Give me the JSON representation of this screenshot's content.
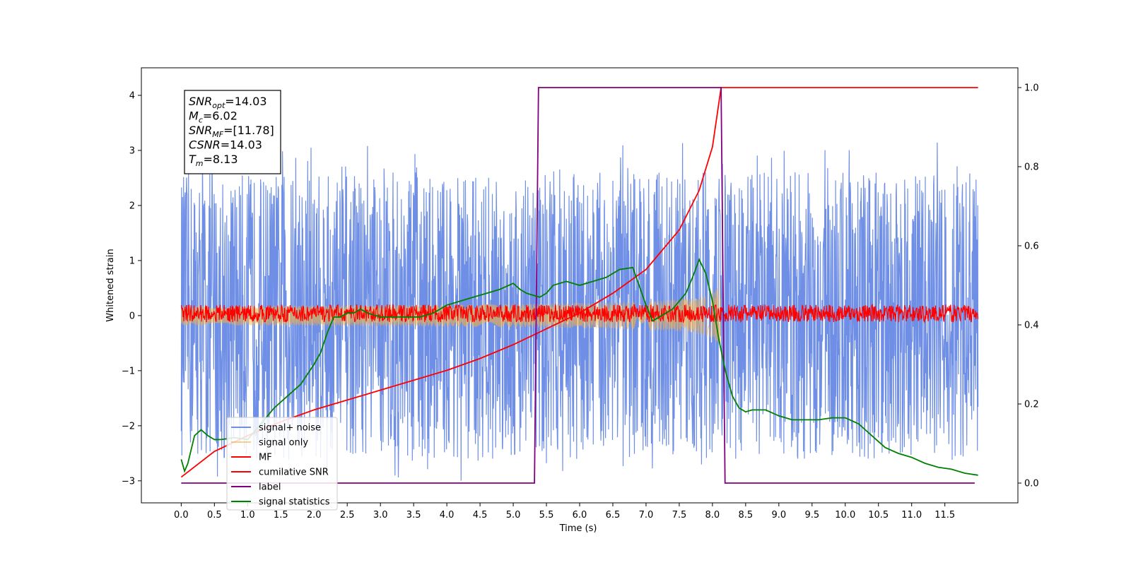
{
  "chart_data": {
    "type": "line",
    "xlabel": "Time (s)",
    "ylabel": "Whitened strain",
    "xlim": [
      -0.6,
      12.6
    ],
    "ylim": [
      -3.4,
      4.5
    ],
    "ylim_right": [
      -0.05,
      1.05
    ],
    "x_ticks": [
      "0.0",
      "0.5",
      "1.0",
      "1.5",
      "2.0",
      "2.5",
      "3.0",
      "3.5",
      "4.0",
      "4.5",
      "5.0",
      "5.5",
      "6.0",
      "6.5",
      "7.0",
      "7.5",
      "8.0",
      "8.5",
      "9.0",
      "9.5",
      "10.0",
      "10.5",
      "11.0",
      "11.5"
    ],
    "y_ticks_left": [
      "-3",
      "-2",
      "-1",
      "0",
      "1",
      "2",
      "3",
      "4"
    ],
    "y_ticks_right": [
      "0.0",
      "0.2",
      "0.4",
      "0.6",
      "0.8",
      "1.0"
    ],
    "annotation": [
      {
        "sym": "SNR",
        "sub": "opt",
        "rest": "=14.03"
      },
      {
        "sym": "M",
        "sub": "c",
        "rest": "=6.02"
      },
      {
        "sym": "SNR",
        "sub": "MF",
        "rest": "=[11.78]"
      },
      {
        "sym": "CSNR",
        "sub": "",
        "rest": "=14.03"
      },
      {
        "sym": "T",
        "sub": "m",
        "rest": "=8.13"
      }
    ],
    "legend_position": "lower-left",
    "series": [
      {
        "name": "signal+ noise",
        "color": "#6f8fe6",
        "axis": "left",
        "kind": "noise",
        "x_range": [
          0.0,
          12.0
        ],
        "envelope": [
          -2.6,
          2.6
        ],
        "peaks": [
          -3.0,
          3.2
        ]
      },
      {
        "name": "signal only",
        "color": "#f5b041",
        "axis": "left",
        "kind": "chirp",
        "x_range": [
          0.0,
          8.13
        ],
        "amplitude_end": 0.95
      },
      {
        "name": "MF",
        "color": "#ff0000",
        "axis": "left",
        "kind": "noise",
        "x_range": [
          0.0,
          12.0
        ],
        "envelope": [
          -0.12,
          0.2
        ]
      },
      {
        "name": "cumilative SNR",
        "color": "#ff0000",
        "axis": "right",
        "kind": "line",
        "x": [
          0.0,
          0.5,
          1.0,
          1.5,
          2.0,
          2.5,
          3.0,
          3.5,
          4.0,
          4.5,
          5.0,
          5.5,
          6.0,
          6.5,
          7.0,
          7.5,
          7.8,
          8.0,
          8.13,
          8.13,
          12.0
        ],
        "y": [
          0.015,
          0.08,
          0.12,
          0.155,
          0.185,
          0.21,
          0.235,
          0.26,
          0.285,
          0.315,
          0.35,
          0.39,
          0.43,
          0.48,
          0.54,
          0.64,
          0.74,
          0.85,
          1.0,
          1.0,
          1.0
        ]
      },
      {
        "name": "label",
        "color": "#800080",
        "axis": "right",
        "kind": "line",
        "x": [
          0.0,
          5.32,
          5.38,
          8.13,
          8.19,
          11.95
        ],
        "y": [
          0.0,
          0.0,
          1.0,
          1.0,
          0.0,
          0.0
        ]
      },
      {
        "name": "signal statistics",
        "color": "#008000",
        "axis": "right",
        "kind": "line",
        "x": [
          0.0,
          0.05,
          0.1,
          0.2,
          0.3,
          0.4,
          0.5,
          0.6,
          0.8,
          1.0,
          1.2,
          1.4,
          1.6,
          1.8,
          2.0,
          2.1,
          2.2,
          2.3,
          2.4,
          2.5,
          2.6,
          2.7,
          2.8,
          3.0,
          3.2,
          3.4,
          3.6,
          3.8,
          4.0,
          4.2,
          4.4,
          4.6,
          4.8,
          5.0,
          5.1,
          5.2,
          5.3,
          5.4,
          5.5,
          5.6,
          5.8,
          6.0,
          6.2,
          6.4,
          6.5,
          6.6,
          6.8,
          7.0,
          7.1,
          7.2,
          7.3,
          7.4,
          7.6,
          7.7,
          7.8,
          7.9,
          8.0,
          8.1,
          8.2,
          8.3,
          8.4,
          8.5,
          8.6,
          8.8,
          9.0,
          9.2,
          9.4,
          9.6,
          9.8,
          10.0,
          10.2,
          10.4,
          10.6,
          10.8,
          11.0,
          11.2,
          11.4,
          11.6,
          11.8,
          12.0
        ],
        "y": [
          0.06,
          0.03,
          0.05,
          0.12,
          0.135,
          0.12,
          0.11,
          0.11,
          0.115,
          0.11,
          0.15,
          0.19,
          0.22,
          0.25,
          0.3,
          0.33,
          0.38,
          0.42,
          0.42,
          0.43,
          0.43,
          0.44,
          0.43,
          0.42,
          0.42,
          0.42,
          0.42,
          0.43,
          0.45,
          0.46,
          0.47,
          0.48,
          0.49,
          0.505,
          0.49,
          0.48,
          0.475,
          0.47,
          0.48,
          0.5,
          0.51,
          0.5,
          0.51,
          0.52,
          0.53,
          0.54,
          0.545,
          0.45,
          0.41,
          0.42,
          0.43,
          0.44,
          0.48,
          0.52,
          0.565,
          0.53,
          0.46,
          0.36,
          0.28,
          0.22,
          0.19,
          0.18,
          0.185,
          0.185,
          0.17,
          0.16,
          0.16,
          0.16,
          0.165,
          0.165,
          0.15,
          0.12,
          0.09,
          0.075,
          0.065,
          0.05,
          0.04,
          0.035,
          0.025,
          0.02
        ]
      }
    ]
  }
}
